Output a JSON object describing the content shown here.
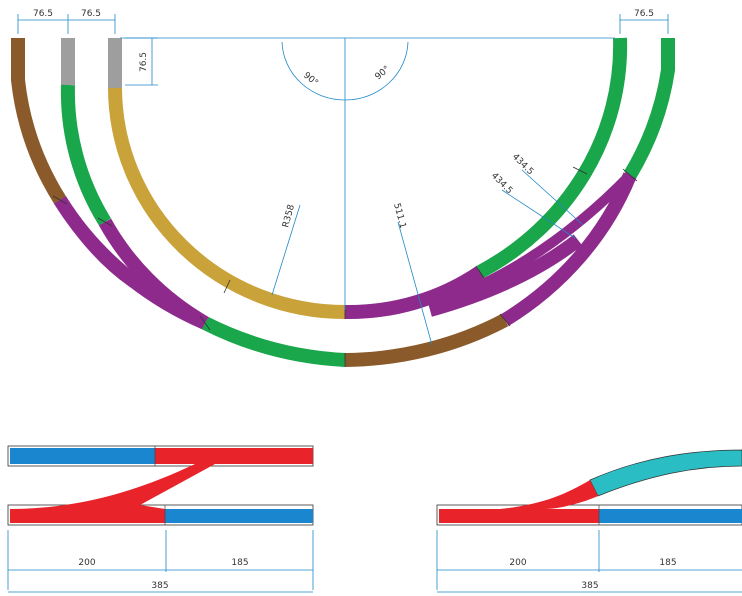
{
  "colors": {
    "brown": "#8a5a2b",
    "green": "#1aa64b",
    "gray": "#9e9e9e",
    "gold": "#c9a23a",
    "purple": "#8e2a8c",
    "red": "#e8232a",
    "blue": "#1a86cf",
    "teal": "#2bbdc4",
    "dimension": "#1e88c8"
  },
  "dimensions": {
    "track_gap_1": "76.5",
    "track_gap_2": "76.5",
    "track_gap_right": "76.5",
    "track_gap_vertical": "76.5",
    "angle_left": "90°",
    "angle_right": "90°",
    "radius_inner": "R358",
    "radius_middle": "511.1",
    "radius_switch_a": "434.5",
    "radius_switch_b": "434.5"
  },
  "switch_left": {
    "length_a": "200",
    "length_b": "185",
    "total": "385"
  },
  "switch_right": {
    "length_a": "200",
    "length_b": "185",
    "total": "385"
  }
}
